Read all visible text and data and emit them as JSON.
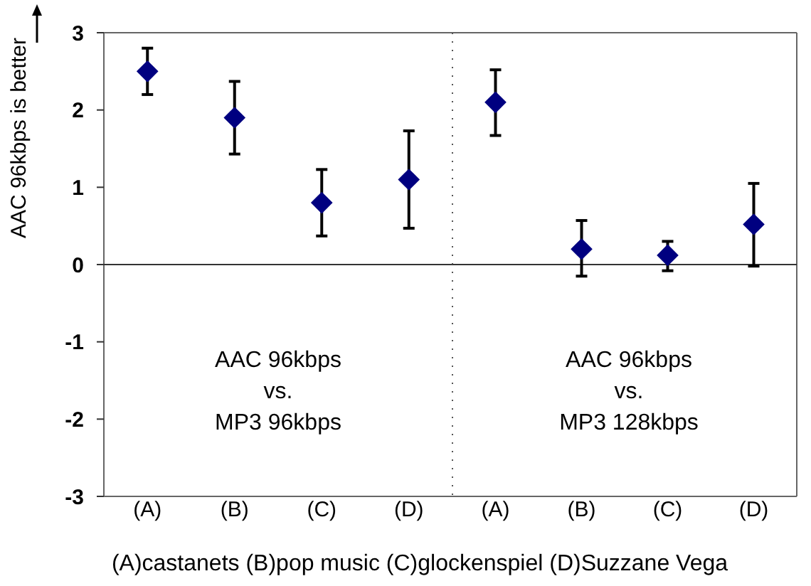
{
  "chart_data": [
    {
      "type": "scatter",
      "ylabel": "AAC 96kbps is better",
      "categories": [
        "(A)",
        "(B)",
        "(C)",
        "(D)"
      ],
      "values": [
        2.5,
        1.9,
        0.8,
        1.1
      ],
      "errors": [
        [
          2.2,
          2.8
        ],
        [
          1.43,
          2.37
        ],
        [
          0.37,
          1.23
        ],
        [
          0.47,
          1.73
        ]
      ],
      "color": "#000080",
      "marker": "diamond",
      "ylim": [
        -3,
        3
      ],
      "yticks": [
        -3,
        -2,
        -1,
        0,
        1,
        2,
        3
      ],
      "annotations": [
        "AAC 96kbps\nvs.\nMP3 96kbps",
        "(A)castanets (B)pop music (C)glockenspiel (D)Suzzane Vega"
      ]
    },
    {
      "type": "scatter",
      "categories": [
        "(A)",
        "(B)",
        "(C)",
        "(D)"
      ],
      "values": [
        2.1,
        0.2,
        0.12,
        0.52
      ],
      "errors": [
        [
          1.67,
          2.52
        ],
        [
          -0.15,
          0.57
        ],
        [
          -0.08,
          0.3
        ],
        [
          -0.02,
          1.05
        ]
      ],
      "color": "#000080",
      "marker": "diamond",
      "ylim": [
        -3,
        3
      ],
      "tick_labels": "x",
      "annotations": [
        "AAC 96kbps\nvs.\nMP3 128kbps"
      ]
    }
  ]
}
